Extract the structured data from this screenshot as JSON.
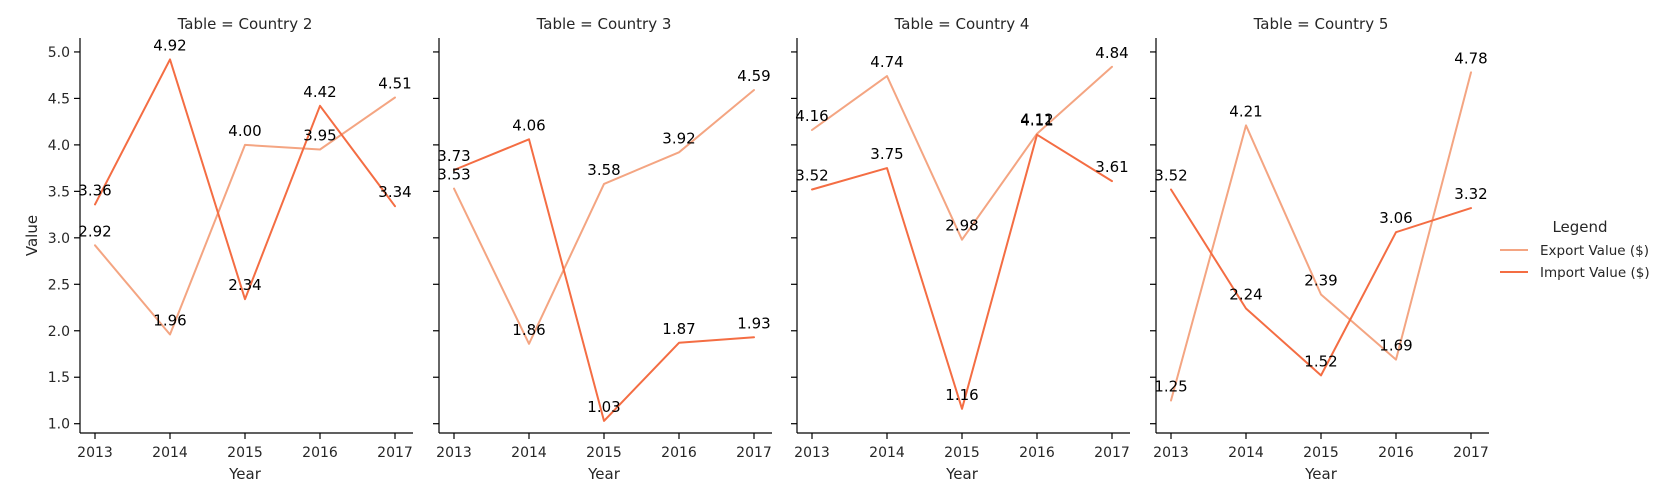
{
  "chart_data": {
    "type": "line",
    "xlabel": "Year",
    "ylabel": "Value",
    "ylim": [
      0.9,
      5.15
    ],
    "yticks": [
      "1.0",
      "1.5",
      "2.0",
      "2.5",
      "3.0",
      "3.5",
      "4.0",
      "4.5",
      "5.0"
    ],
    "x": [
      "2013",
      "2014",
      "2015",
      "2016",
      "2017"
    ],
    "legend": {
      "title": "Legend",
      "position": "right",
      "entries": [
        {
          "name": "Export Value ($)",
          "color": "#f4a582"
        },
        {
          "name": "Import Value ($)",
          "color": "#f46d43"
        }
      ]
    },
    "panels": [
      {
        "title": "Table = Country 2",
        "series": [
          {
            "name": "Export Value ($)",
            "values": [
              2.92,
              1.96,
              4.0,
              3.95,
              4.51
            ],
            "labels": [
              "2.92",
              "1.96",
              "4.00",
              "3.95",
              "4.51"
            ]
          },
          {
            "name": "Import Value ($)",
            "values": [
              3.36,
              4.92,
              2.34,
              4.42,
              3.34
            ],
            "labels": [
              "3.36",
              "4.92",
              "2.34",
              "4.42",
              "3.34"
            ]
          }
        ]
      },
      {
        "title": "Table = Country 3",
        "series": [
          {
            "name": "Export Value ($)",
            "values": [
              3.53,
              1.86,
              3.58,
              3.92,
              4.59
            ],
            "labels": [
              "3.53",
              "1.86",
              "3.58",
              "3.92",
              "4.59"
            ]
          },
          {
            "name": "Import Value ($)",
            "values": [
              3.73,
              4.06,
              1.03,
              1.87,
              1.93
            ],
            "labels": [
              "3.73",
              "4.06",
              "1.03",
              "1.87",
              "1.93"
            ]
          }
        ]
      },
      {
        "title": "Table = Country 4",
        "series": [
          {
            "name": "Export Value ($)",
            "values": [
              4.16,
              4.74,
              2.98,
              4.12,
              4.84
            ],
            "labels": [
              "4.16",
              "4.74",
              "2.98",
              "4.12",
              "4.84"
            ]
          },
          {
            "name": "Import Value ($)",
            "values": [
              3.52,
              3.75,
              1.16,
              4.11,
              3.61
            ],
            "labels": [
              "3.52",
              "3.75",
              "1.16",
              "4.11",
              "3.61"
            ]
          }
        ]
      },
      {
        "title": "Table = Country 5",
        "series": [
          {
            "name": "Export Value ($)",
            "values": [
              1.25,
              4.21,
              2.39,
              1.69,
              4.78
            ],
            "labels": [
              "1.25",
              "4.21",
              "2.39",
              "1.69",
              "4.78"
            ]
          },
          {
            "name": "Import Value ($)",
            "values": [
              3.52,
              2.24,
              1.52,
              3.06,
              3.32
            ],
            "labels": [
              "3.52",
              "2.24",
              "1.52",
              "3.06",
              "3.32"
            ]
          }
        ]
      }
    ]
  }
}
